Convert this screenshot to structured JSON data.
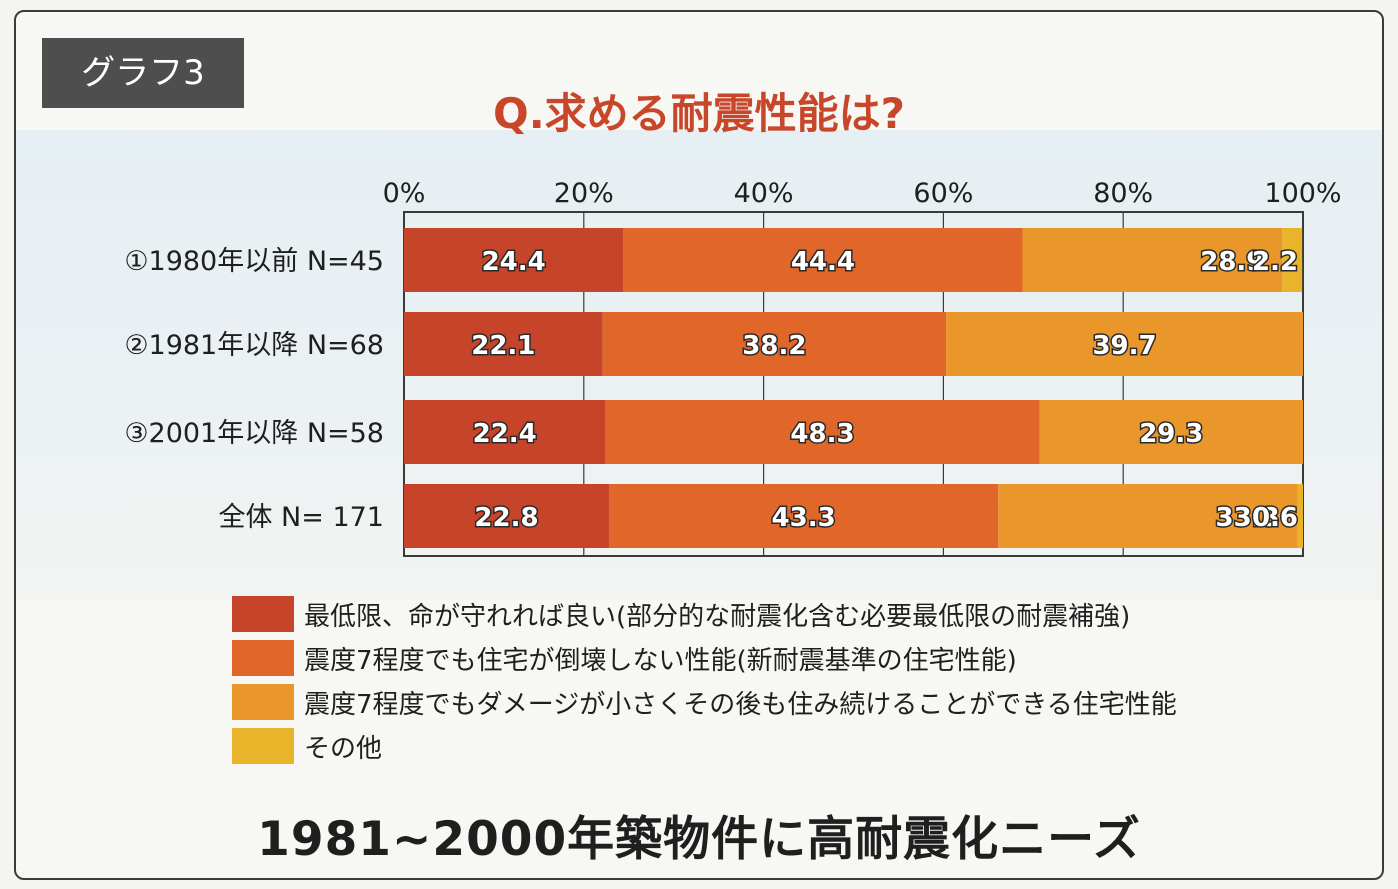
{
  "badge": "グラフ3",
  "title": "Q.求める耐震性能は?",
  "headline": "1981~2000年築物件に高耐震化ニーズ",
  "colors": {
    "series": [
      "#c5442a",
      "#e0662a",
      "#e9962a",
      "#e9b32a"
    ],
    "label_text": "#ffffff",
    "label_outline": "#2a2a2a"
  },
  "chart_data": {
    "type": "bar",
    "orientation": "horizontal",
    "stacked": true,
    "title": "Q.求める耐震性能は?",
    "xlim": [
      0,
      100
    ],
    "x_ticks": [
      "0%",
      "20%",
      "40%",
      "60%",
      "80%",
      "100%"
    ],
    "grid": true,
    "legend_position": "bottom",
    "categories": [
      "①1980年以前 N=45",
      "②1981年以降 N=68",
      "③2001年以降 N=58",
      "全体 N= 171"
    ],
    "series": [
      {
        "name": "最低限、命が守れれば良い(部分的な耐震化含む必要最低限の耐震補強)",
        "values": [
          24.4,
          22.1,
          22.4,
          22.8
        ]
      },
      {
        "name": "震度7程度でも住宅が倒壊しない性能(新耐震基準の住宅性能)",
        "values": [
          44.4,
          38.2,
          48.3,
          43.3
        ]
      },
      {
        "name": "震度7程度でもダメージが小さくその後も住み続けることができる住宅性能",
        "values": [
          28.9,
          39.7,
          29.3,
          33.3
        ]
      },
      {
        "name": "その他",
        "values": [
          2.2,
          0,
          0,
          0.6
        ]
      }
    ],
    "data_labels": [
      [
        "24.4",
        "44.4",
        "28.9",
        "2.2"
      ],
      [
        "22.1",
        "38.2",
        "39.7",
        ""
      ],
      [
        "22.4",
        "48.3",
        "29.3",
        ""
      ],
      [
        "22.8",
        "43.3",
        "33.3",
        "0.6"
      ]
    ]
  }
}
